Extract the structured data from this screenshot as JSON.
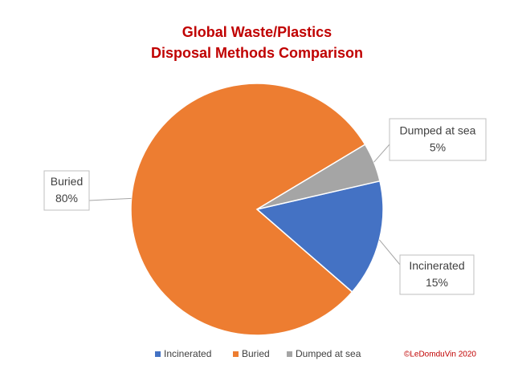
{
  "chart_data": {
    "type": "pie",
    "title_lines": [
      "Global Waste/Plastics",
      "Disposal Methods Comparison"
    ],
    "categories": [
      "Incinerated",
      "Buried",
      "Dumped at sea"
    ],
    "values": [
      15,
      80,
      5
    ],
    "value_labels": [
      "15%",
      "80%",
      "5%"
    ],
    "colors": [
      "#4472c4",
      "#ed7d31",
      "#a5a5a5"
    ],
    "legend": "bottom",
    "annotation": "©LeDomduVin 2020"
  }
}
